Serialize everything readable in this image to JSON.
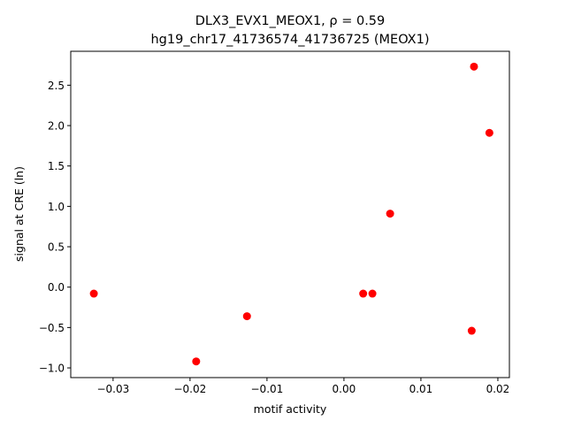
{
  "chart_data": {
    "type": "scatter",
    "title_line1": "DLX3_EVX1_MEOX1, ρ = 0.59",
    "title_line2": "hg19_chr17_41736574_41736725 (MEOX1)",
    "xlabel": "motif activity",
    "ylabel": "signal at CRE (ln)",
    "xlim": [
      -0.0355,
      0.0215
    ],
    "ylim": [
      -1.12,
      2.92
    ],
    "xticks": [
      -0.03,
      -0.02,
      -0.01,
      0.0,
      0.01,
      0.02
    ],
    "xtick_labels": [
      "−0.03",
      "−0.02",
      "−0.01",
      "0.00",
      "0.01",
      "0.02"
    ],
    "yticks": [
      -1.0,
      -0.5,
      0.0,
      0.5,
      1.0,
      1.5,
      2.0,
      2.5
    ],
    "ytick_labels": [
      "−1.0",
      "−0.5",
      "0.0",
      "0.5",
      "1.0",
      "1.5",
      "2.0",
      "2.5"
    ],
    "grid": false,
    "marker_color": "#ff0000",
    "points": [
      {
        "x": -0.0325,
        "y": -0.08
      },
      {
        "x": -0.0192,
        "y": -0.92
      },
      {
        "x": -0.0126,
        "y": -0.36
      },
      {
        "x": 0.0025,
        "y": -0.08
      },
      {
        "x": 0.0037,
        "y": -0.08
      },
      {
        "x": 0.006,
        "y": 0.91
      },
      {
        "x": 0.0166,
        "y": -0.54
      },
      {
        "x": 0.0169,
        "y": 2.73
      },
      {
        "x": 0.0189,
        "y": 1.91
      }
    ]
  }
}
